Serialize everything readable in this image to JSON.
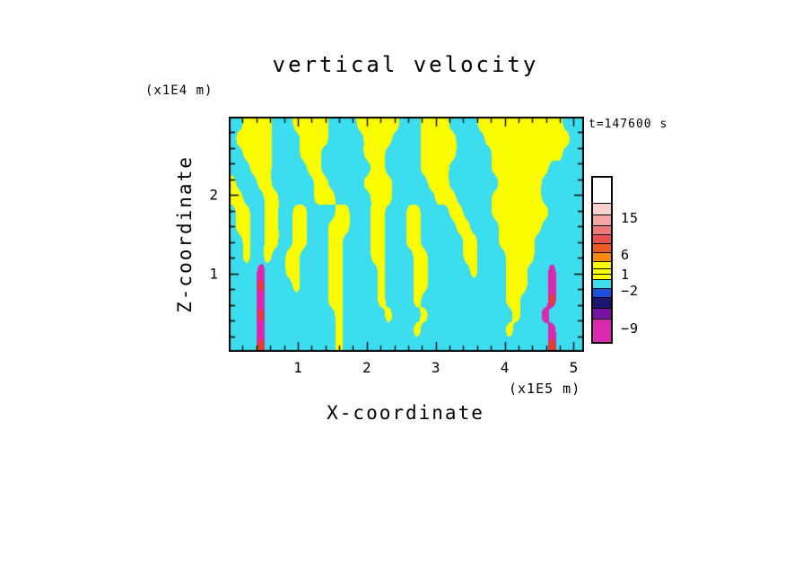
{
  "title": "vertical velocity",
  "timestamp": "t=147600 s",
  "axes": {
    "x": {
      "label": "X-coordinate",
      "unit": "(x1E5 m)",
      "ticks": [
        1,
        2,
        3,
        4,
        5
      ],
      "range": [
        0,
        5.15
      ],
      "minor_step": 0.2
    },
    "z": {
      "label": "Z-coordinate",
      "unit": "(x1E4 m)",
      "ticks": [
        1,
        2
      ],
      "range": [
        0,
        3.0
      ],
      "minor_step": 0.2
    }
  },
  "colorbar": {
    "tick_labels": [
      "15",
      "6",
      "1",
      "−2",
      "−9"
    ],
    "segments": [
      {
        "color": "#FFFFFF",
        "h": 28,
        "label": ""
      },
      {
        "color": "#F7CFCF",
        "h": 13,
        "label": ""
      },
      {
        "color": "#F1A5A5",
        "h": 12,
        "label": "15"
      },
      {
        "color": "#EC7A7A",
        "h": 10,
        "label": ""
      },
      {
        "color": "#E95050",
        "h": 10,
        "label": ""
      },
      {
        "color": "#EA5A22",
        "h": 10,
        "label": ""
      },
      {
        "color": "#F68A0C",
        "h": 10,
        "label": "6"
      },
      {
        "color": "#FCFC00",
        "h": 8,
        "label": ""
      },
      {
        "color": "#FCFC00",
        "h": 6,
        "label": ""
      },
      {
        "color": "#FCFC00",
        "h": 6,
        "label": "1"
      },
      {
        "color": "#3CDDEE",
        "h": 10,
        "label": ""
      },
      {
        "color": "#1E4FD8",
        "h": 10,
        "label": "−2"
      },
      {
        "color": "#1B1670",
        "h": 12,
        "label": ""
      },
      {
        "color": "#7714A2",
        "h": 12,
        "label": ""
      },
      {
        "color": "#DB28AE",
        "h": 26,
        "label": "−9"
      }
    ]
  },
  "chart_data": {
    "type": "heatmap",
    "title": "vertical velocity",
    "xlabel": "X-coordinate (x1E5 m)",
    "ylabel": "Z-coordinate (x1E4 m)",
    "x_range": [
      0,
      5.15
    ],
    "z_range": [
      0,
      3.0
    ],
    "time": "t=147600 s",
    "contour_levels": [
      -9,
      -2,
      1,
      6,
      15
    ],
    "char_levels": {
      "c": "-2..1 (downdraft, cyan)",
      "y": "1..6 (updraft, yellow)",
      "r": "6..15 (strong updraft)",
      "m": "< -9 (strong downdraft)"
    },
    "palette": {
      "c": "#3CDDEE",
      "y": "#FCFC00",
      "r": "#E8401E",
      "m": "#DB28AE"
    },
    "grid_note": "rows top-to-bottom, z=3E4 m at first row, z=0 at last; 50 columns span x=0..5.15E5 m",
    "grid": [
      "ccyyyycccyyyyyccccyyyyyycccyyyyccccyyyyyyyyyyyyccc",
      "cyyyyyccccyyyycccccyyyyccccyyyyyccccyyyyyyyyyyyycc",
      "ccyyyyccccyyyccccccyyycccccyyyyycccccyyyyyyyyyyccc",
      "cccyyycccccyycccccccyycccccyyyyccccccyyyyyyyyccccc",
      "ycccyyccccccyycccccyyyycccccyyycccccccyyyyyycccccc",
      "yycccyycccccyyycccccyyyccccccyyycccccyyyyyyycccccc",
      "cyyccyyccyyccccyycccyycccyyccccyyccccyyyyyyyyccccc",
      "cyyccyyccyycccyyycccyycccyycccccyyccccyyyyyycccccc",
      "ccyccyyccyycccyyccccyycccyyccccccyycccyyyyyccccccc",
      "ccyccyccyyccccyyccccyyccccyycccccyyccccyyyyccccccc",
      "ccccmcccyyccccyycccccyccccyyccccccyccccyyycccmcccc",
      "ccccrccccyccccyycccccyccccyycccccccccccyyycccmcccc",
      "ccccmcccccccccyycccccyccccyccccccccccccyyccccrcccc",
      "ccccrccccccccccyccccccyccccyccccccccccccycccmccccc",
      "ccccmccccccccccyccccccccccyccccccccccccycccccmcccc",
      "ccccrccccccccccycccccccccccccccccccccccccccccrcccc"
    ]
  }
}
